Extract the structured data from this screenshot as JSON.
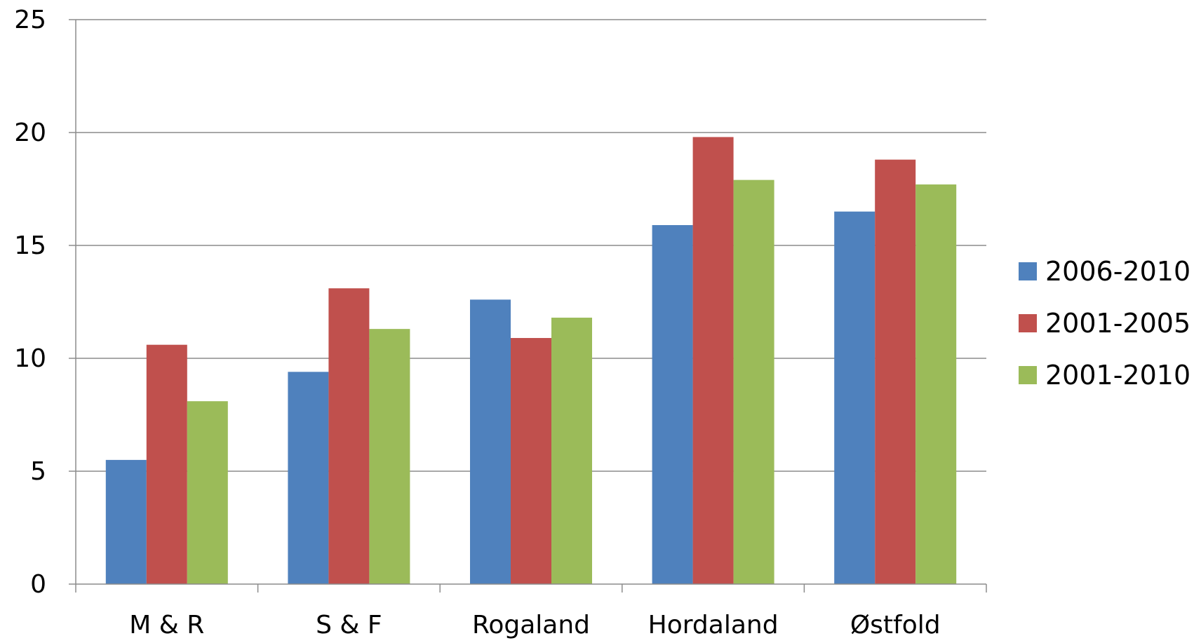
{
  "chart_data": {
    "type": "bar",
    "title": "",
    "xlabel": "",
    "ylabel": "",
    "categories": [
      "M & R",
      "S & F",
      "Rogaland",
      "Hordaland",
      "Østfold"
    ],
    "series": [
      {
        "name": "2006-2010",
        "color": "#4F81BD",
        "values": [
          5.5,
          9.4,
          12.6,
          15.9,
          16.5
        ]
      },
      {
        "name": "2001-2005",
        "color": "#C0504D",
        "values": [
          10.6,
          13.1,
          10.9,
          19.8,
          18.8
        ]
      },
      {
        "name": "2001-2010",
        "color": "#9BBB59",
        "values": [
          8.1,
          11.3,
          11.8,
          17.9,
          17.7
        ]
      }
    ],
    "ylim": [
      0,
      25
    ],
    "yticks": [
      0,
      5,
      10,
      15,
      20,
      25
    ],
    "grid": "horizontal",
    "legend_position": "right"
  }
}
